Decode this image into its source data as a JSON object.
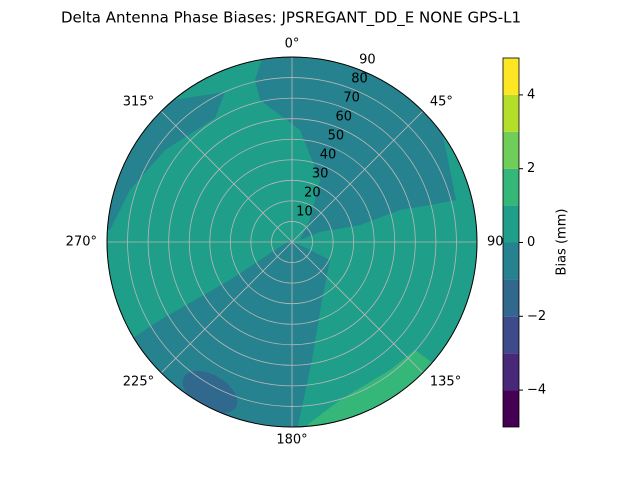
{
  "chart_data": {
    "type": "polar-contour",
    "title": "Delta Antenna Phase Biases: JPSREGANT_DD_E  NONE GPS-L1",
    "theta_ticks": [
      {
        "value": 0,
        "label": "0°"
      },
      {
        "value": 45,
        "label": "45°"
      },
      {
        "value": 90,
        "label": "90°"
      },
      {
        "value": 135,
        "label": "135°"
      },
      {
        "value": 180,
        "label": "180°"
      },
      {
        "value": 225,
        "label": "225°"
      },
      {
        "value": 270,
        "label": "270°"
      },
      {
        "value": 315,
        "label": "315°"
      }
    ],
    "rlim": [
      0,
      90
    ],
    "rticks": [
      10,
      20,
      30,
      40,
      50,
      60,
      70,
      80,
      90
    ],
    "levels": [
      -5,
      -4,
      -3,
      -2,
      -1,
      0,
      1,
      2,
      3,
      4,
      5
    ],
    "colors": [
      "#440154",
      "#482878",
      "#3e4a89",
      "#31688e",
      "#26828e",
      "#1f9e89",
      "#35b779",
      "#6ece58",
      "#b5de2b",
      "#fde725"
    ],
    "colorbar_label": "Bias (mm)",
    "colorbar_ticks": [
      {
        "value": -4,
        "label": "−4"
      },
      {
        "value": -2,
        "label": "−2"
      },
      0,
      2,
      4
    ],
    "grid": true
  }
}
